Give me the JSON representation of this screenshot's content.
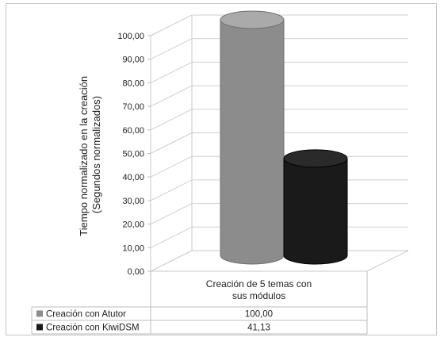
{
  "chart_data": {
    "type": "bar",
    "title": "",
    "ylabel_lines": [
      "Tiempo normalizado en la creación",
      "(Segundos normalizados)"
    ],
    "xlabel": "",
    "categories": [
      "Creación de 5 temas con sus módulos"
    ],
    "category_lines": [
      "Creación de 5 temas con",
      "sus módulos"
    ],
    "ylim": [
      0,
      100
    ],
    "yticks": [
      "0,00",
      "10,00",
      "20,00",
      "30,00",
      "40,00",
      "50,00",
      "60,00",
      "70,00",
      "80,00",
      "90,00",
      "100,00"
    ],
    "grid": true,
    "legend_placement": "bottom data table",
    "series": [
      {
        "name": "Creación con Atutor",
        "values": [
          100.0
        ],
        "table_value": "100,00",
        "color": "#8c8c8c"
      },
      {
        "name": "Creación con KiwiDSM",
        "values": [
          41.13
        ],
        "table_value": "41,13",
        "color": "#1a1a1a"
      }
    ]
  }
}
